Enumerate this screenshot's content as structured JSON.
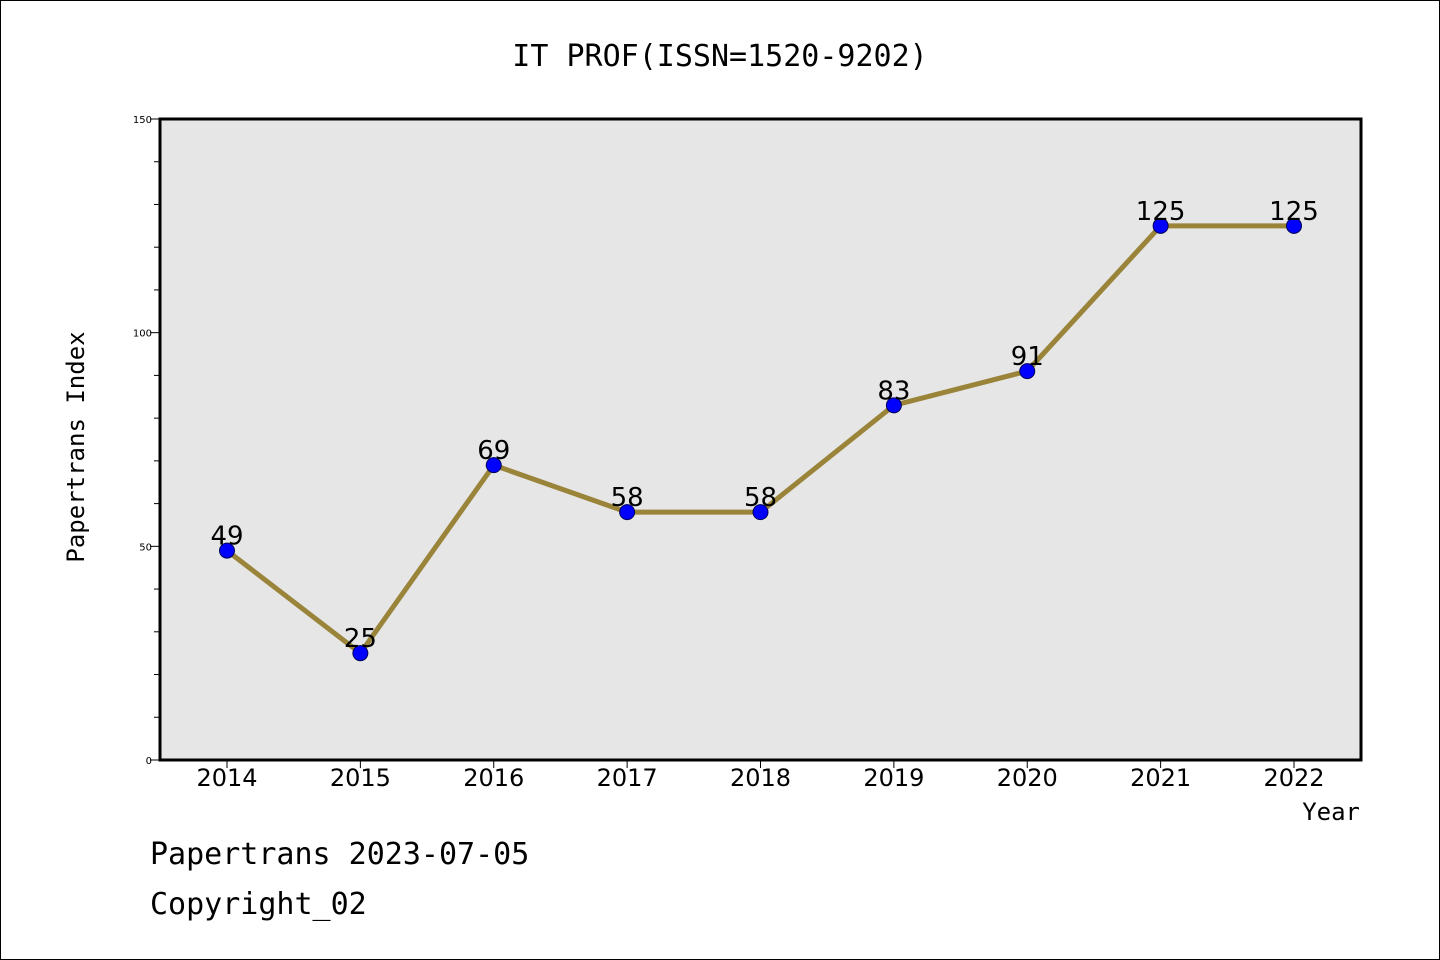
{
  "chart_data": {
    "type": "line",
    "title": "IT PROF(ISSN=1520-9202)",
    "xlabel": "Year",
    "ylabel": "Papertrans Index",
    "x": [
      "2014",
      "2015",
      "2016",
      "2017",
      "2018",
      "2019",
      "2020",
      "2021",
      "2022"
    ],
    "values": [
      49,
      25,
      69,
      58,
      58,
      83,
      91,
      125,
      125
    ],
    "data_labels": [
      "49",
      "25",
      "69",
      "58",
      "58",
      "83",
      "91",
      "125",
      "125"
    ],
    "ylim": [
      0,
      150
    ],
    "yticks_major": [
      0,
      50,
      100,
      150
    ],
    "ytick_labels": [
      "0",
      "50",
      "100",
      "150"
    ],
    "yticks_minor_step": 10,
    "grid": false,
    "legend": "none",
    "colors": {
      "line": "#9a843a",
      "marker": "#0000ff",
      "plot_background": "#e6e6e6",
      "axes": "#000000"
    }
  },
  "footer": {
    "line1": "Papertrans 2023-07-05",
    "line2": "Copyright_02"
  }
}
